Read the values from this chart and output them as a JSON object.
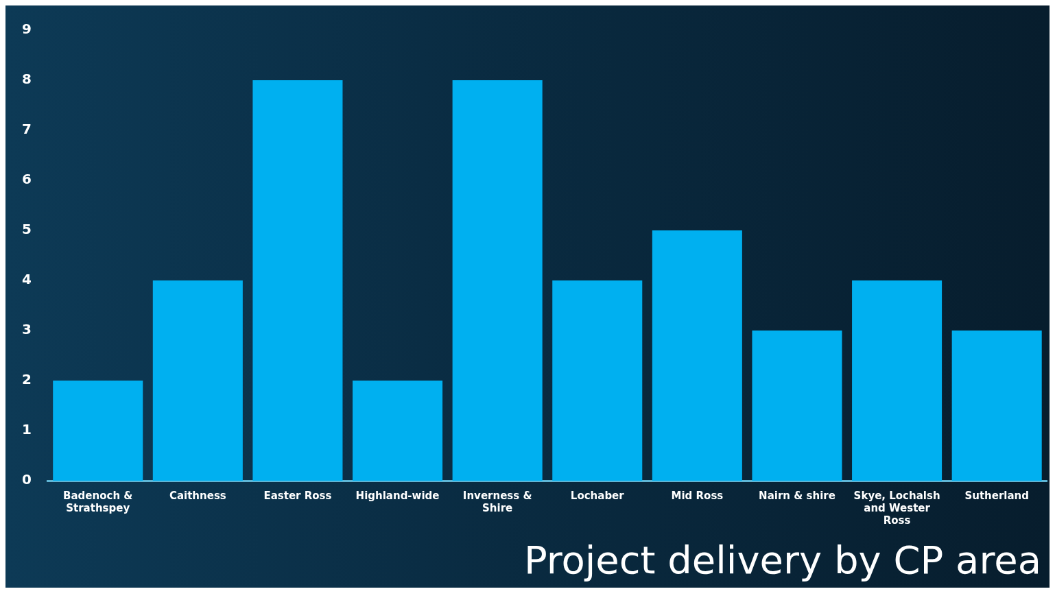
{
  "chart_data": {
    "type": "bar",
    "title": "Project delivery by CP area",
    "categories": [
      "Badenoch & Strathspey",
      "Caithness",
      "Easter Ross",
      "Highland-wide",
      "Inverness & Shire",
      "Lochaber",
      "Mid Ross",
      "Nairn & shire",
      "Skye, Lochalsh and Wester Ross",
      "Sutherland"
    ],
    "values": [
      2,
      4,
      8,
      2,
      8,
      4,
      5,
      3,
      4,
      3
    ],
    "color": "#00b0f0",
    "ylim": [
      0,
      9
    ],
    "yticks": [
      0,
      1,
      2,
      3,
      4,
      5,
      6,
      7,
      8,
      9
    ],
    "grid": false,
    "legend": false
  }
}
